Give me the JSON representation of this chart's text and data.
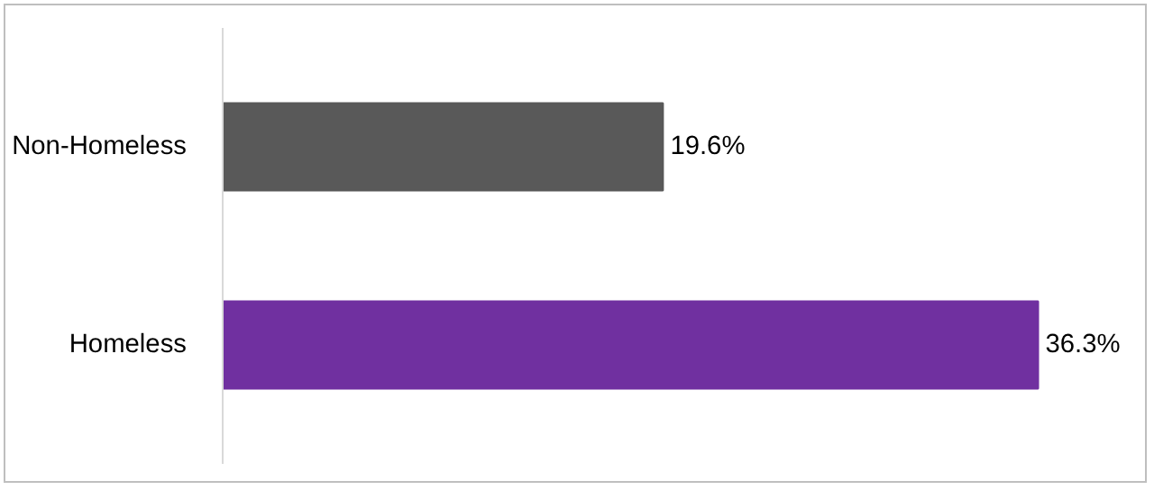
{
  "chart_data": {
    "type": "bar",
    "orientation": "horizontal",
    "categories": [
      "Non-Homeless",
      "Homeless"
    ],
    "values": [
      19.6,
      36.3
    ],
    "colors": [
      "#595959",
      "#7030a0"
    ],
    "value_labels": [
      "19.6%",
      "36.3%"
    ],
    "grid": false,
    "tick_labels": "y"
  }
}
